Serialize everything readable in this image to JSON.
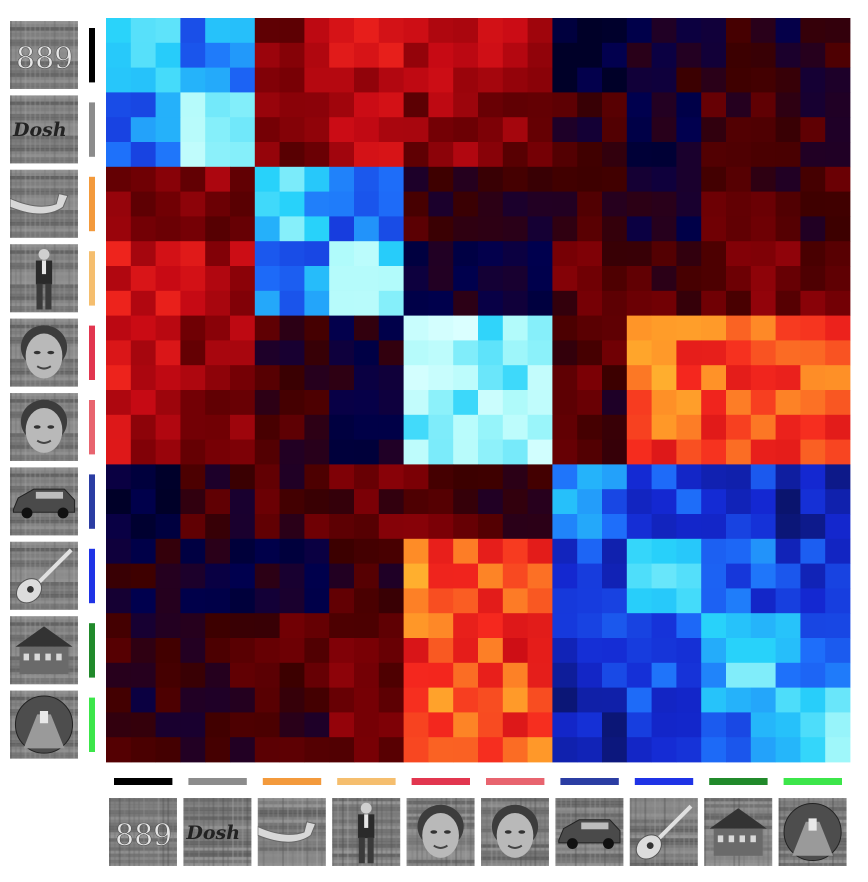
{
  "chart_data": {
    "type": "heatmap",
    "title": "",
    "xlabel": "",
    "ylabel": "",
    "grid_size": 30,
    "block_size": 3,
    "categories": [
      {
        "name": "text-digits",
        "label": "889",
        "color": "#000000"
      },
      {
        "name": "text-word",
        "label": "Dosh",
        "color": "#8c8c8c"
      },
      {
        "name": "body-part-arm",
        "label": "",
        "color": "#f39a3c"
      },
      {
        "name": "body-person",
        "label": "",
        "color": "#f5be6e"
      },
      {
        "name": "face-adult",
        "label": "",
        "color": "#e2364f"
      },
      {
        "name": "face-child",
        "label": "",
        "color": "#e8646f"
      },
      {
        "name": "object-car",
        "label": "",
        "color": "#2b3da3"
      },
      {
        "name": "object-guitar",
        "label": "",
        "color": "#1f33e6"
      },
      {
        "name": "scene-house",
        "label": "",
        "color": "#218a2b"
      },
      {
        "name": "scene-corridor",
        "label": "",
        "color": "#3ce64a"
      }
    ],
    "block_similarity": [
      [
        0.95,
        0.88,
        0.22,
        0.3,
        0.3,
        0.28,
        -0.05,
        0.05,
        0.08,
        0.07
      ],
      [
        0.88,
        1.0,
        0.2,
        0.28,
        0.22,
        0.2,
        0.1,
        0.0,
        0.12,
        0.1
      ],
      [
        0.22,
        0.2,
        0.95,
        0.88,
        0.1,
        0.1,
        0.12,
        0.02,
        0.12,
        0.12
      ],
      [
        0.3,
        0.28,
        0.88,
        1.0,
        0.02,
        0.0,
        0.15,
        0.12,
        0.18,
        0.18
      ],
      [
        0.3,
        0.22,
        0.1,
        0.02,
        1.05,
        1.0,
        0.15,
        0.42,
        0.4,
        0.42
      ],
      [
        0.28,
        0.2,
        0.1,
        0.0,
        1.0,
        1.05,
        0.12,
        0.4,
        0.38,
        0.4
      ],
      [
        -0.05,
        0.1,
        0.12,
        0.15,
        0.15,
        0.12,
        0.88,
        0.82,
        0.8,
        0.75
      ],
      [
        0.05,
        0.0,
        0.02,
        0.12,
        0.42,
        0.4,
        0.82,
        0.95,
        0.85,
        0.82
      ],
      [
        0.08,
        0.12,
        0.12,
        0.18,
        0.4,
        0.38,
        0.8,
        0.85,
        0.95,
        0.88
      ],
      [
        0.07,
        0.1,
        0.12,
        0.18,
        0.42,
        0.4,
        0.75,
        0.82,
        0.88,
        0.97
      ]
    ],
    "colormap": "diverging blue-black-red/yellow (similarity, unlabeled)",
    "legend": "none",
    "axis_ticks": "image thumbnails with category color bars"
  }
}
